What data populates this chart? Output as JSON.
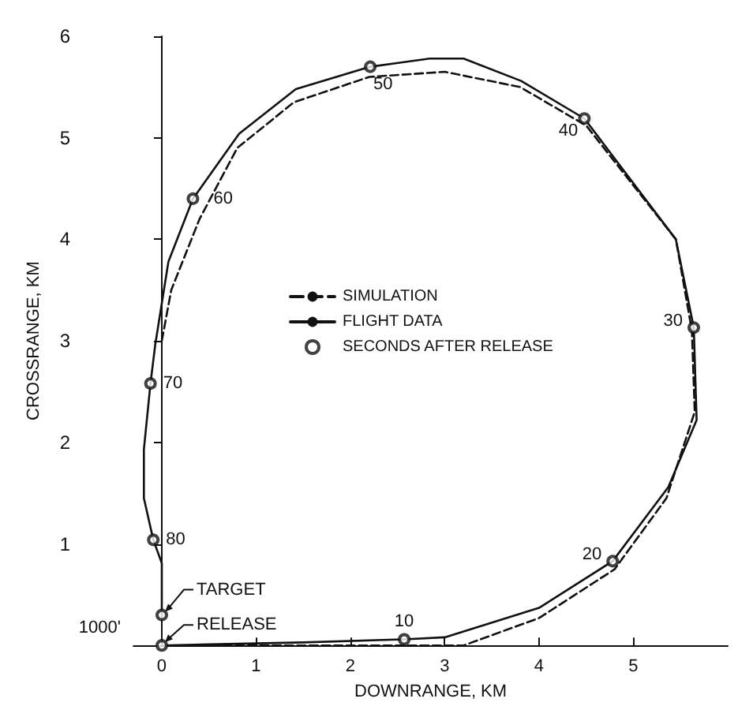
{
  "chart_data": {
    "type": "line",
    "xlabel": "DOWNRANGE, KM",
    "ylabel": "CROSSRANGE, KM",
    "xlim": [
      -0.3,
      6
    ],
    "ylim": [
      0,
      6
    ],
    "xticks": [
      0,
      1,
      2,
      3,
      4,
      5
    ],
    "yticks": [
      1,
      2,
      3,
      4,
      5,
      6
    ],
    "legend": "center",
    "series": [
      {
        "name": "SIMULATION",
        "line_style": "dashed",
        "color": "#111111",
        "x": [
          0,
          1.5,
          3.2,
          4,
          4.8,
          5.35,
          5.65,
          5.62,
          5.45,
          4.5,
          3.8,
          3.0,
          2.2,
          1.4,
          0.8,
          0.4,
          0.1,
          0
        ],
        "values": [
          0,
          0,
          0,
          0.27,
          0.75,
          1.45,
          2.3,
          3.1,
          4.0,
          5.12,
          5.5,
          5.65,
          5.6,
          5.35,
          4.9,
          4.2,
          3.5,
          3.0
        ]
      },
      {
        "name": "FLIGHT DATA",
        "line_style": "solid",
        "color": "#111111",
        "x": [
          0,
          1.5,
          2.57,
          3,
          4,
          4.78,
          5.37,
          5.67,
          5.64,
          5.45,
          4.48,
          3.81,
          3.2,
          2.84,
          2.21,
          1.42,
          0.82,
          0.33,
          0.07,
          -0.07,
          -0.12,
          -0.19,
          -0.19,
          -0.09,
          0,
          0
        ],
        "values": [
          0,
          0.03,
          0.06,
          0.08,
          0.37,
          0.83,
          1.56,
          2.22,
          3.13,
          4.0,
          5.19,
          5.56,
          5.78,
          5.78,
          5.7,
          5.48,
          5.04,
          4.4,
          3.78,
          2.96,
          2.58,
          1.93,
          1.45,
          1.04,
          0.81,
          0.3
        ]
      },
      {
        "name": "SECONDS AFTER RELEASE",
        "type": "scatter",
        "marker": "circle",
        "color": "#111111",
        "x": [
          0,
          2.57,
          4.78,
          5.64,
          4.48,
          2.21,
          0.33,
          -0.12,
          -0.09,
          0
        ],
        "values": [
          0,
          0.06,
          0.83,
          3.13,
          5.19,
          5.7,
          4.4,
          2.58,
          1.04,
          0.3
        ]
      }
    ],
    "annotations": [
      {
        "text": "10",
        "x": 2.57,
        "y": 0.06
      },
      {
        "text": "20",
        "x": 4.78,
        "y": 0.83
      },
      {
        "text": "30",
        "x": 5.64,
        "y": 3.13
      },
      {
        "text": "40",
        "x": 4.48,
        "y": 5.19
      },
      {
        "text": "50",
        "x": 2.21,
        "y": 5.7
      },
      {
        "text": "60",
        "x": 0.33,
        "y": 4.4
      },
      {
        "text": "70",
        "x": -0.12,
        "y": 2.58
      },
      {
        "text": "80",
        "x": -0.09,
        "y": 1.04
      },
      {
        "text": "TARGET",
        "x": 0,
        "y": 0.3
      },
      {
        "text": "RELEASE",
        "x": 0,
        "y": 0
      },
      "1000'"
    ]
  }
}
